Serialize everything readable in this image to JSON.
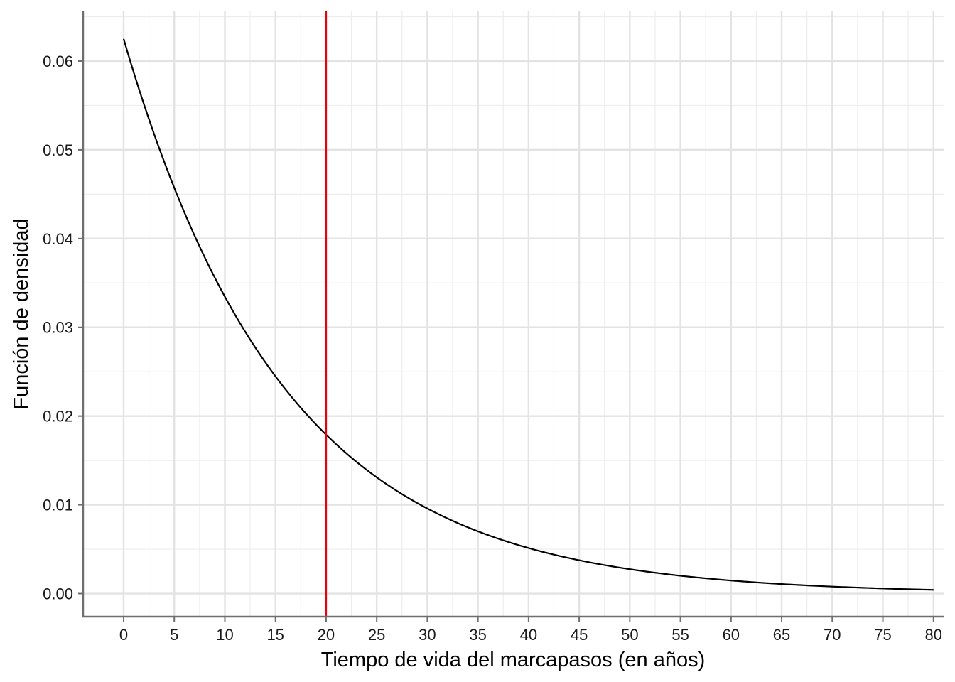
{
  "chart_data": {
    "type": "line",
    "title": "",
    "xlabel": "Tiempo de vida del marcapasos (en años)",
    "ylabel": "Función de densidad",
    "xlim": [
      -4,
      81
    ],
    "ylim": [
      -0.0026,
      0.0656
    ],
    "x_ticks": [
      "0",
      "5",
      "10",
      "15",
      "20",
      "25",
      "30",
      "35",
      "40",
      "45",
      "50",
      "55",
      "60",
      "65",
      "70",
      "75",
      "80"
    ],
    "y_ticks": [
      "0.00",
      "0.01",
      "0.02",
      "0.03",
      "0.04",
      "0.05",
      "0.06"
    ],
    "grid": true,
    "legend": "none",
    "series": [
      {
        "distribution": "exponential",
        "rate": 0.0625,
        "x_range": [
          0,
          80
        ],
        "x": [
          0,
          5,
          10,
          15,
          20,
          25,
          30,
          35,
          40,
          45,
          50,
          55,
          60,
          65,
          70,
          75,
          80
        ],
        "y": [
          0.0625,
          0.0458,
          0.0335,
          0.0245,
          0.0179,
          0.0131,
          0.0096,
          0.007,
          0.0051,
          0.0037,
          0.0027,
          0.002,
          0.0015,
          0.0011,
          0.0008,
          0.0006,
          0.0004
        ],
        "color": "#000000"
      }
    ],
    "annotations": [
      {
        "type": "vline",
        "x": 20,
        "color": "#e8000b"
      }
    ]
  }
}
